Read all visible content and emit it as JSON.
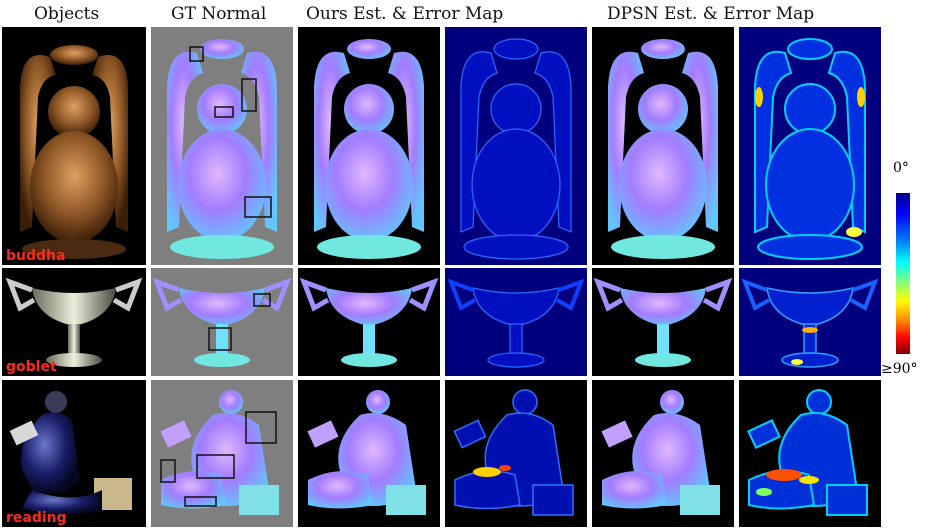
{
  "columns": [
    "Objects",
    "GT Normal",
    "Ours Est. & Error Map",
    "DPSN Est. & Error Map"
  ],
  "rows": [
    {
      "label": "buddha"
    },
    {
      "label": "goblet"
    },
    {
      "label": "reading"
    }
  ],
  "colorbar": {
    "min_label": "0°",
    "max_label": "≥90°"
  }
}
